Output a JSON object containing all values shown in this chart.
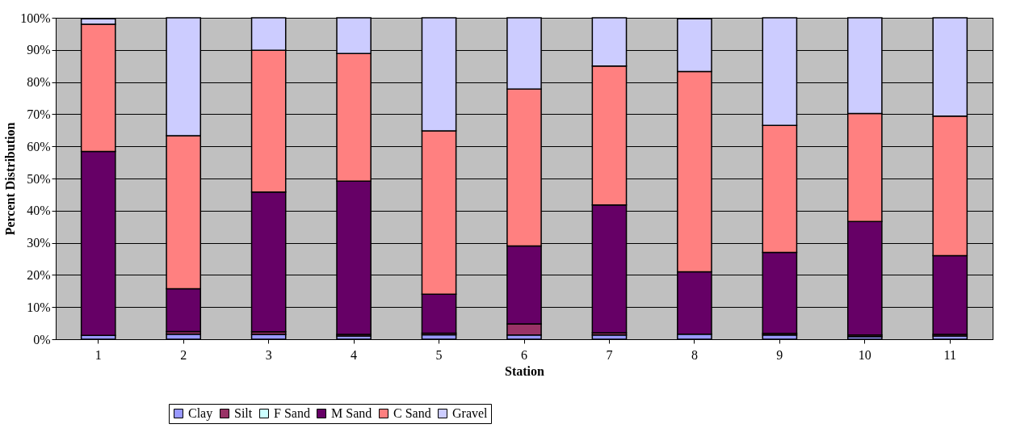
{
  "chart_data": {
    "type": "bar",
    "stacked": true,
    "xlabel": "Station",
    "ylabel": "Percent Distribution",
    "categories": [
      "1",
      "2",
      "3",
      "4",
      "5",
      "6",
      "7",
      "8",
      "9",
      "10",
      "11"
    ],
    "series": [
      {
        "name": "Clay",
        "color": "#9999ff",
        "values": [
          1.2,
          1.6,
          1.5,
          1.0,
          1.4,
          1.3,
          1.3,
          1.6,
          1.3,
          0.8,
          1.0
        ]
      },
      {
        "name": "Silt",
        "color": "#993366",
        "values": [
          null,
          0.8,
          0.8,
          0.5,
          0.5,
          3.5,
          0.7,
          null,
          0.5,
          0.5,
          0.5
        ]
      },
      {
        "name": "F Sand",
        "color": "#ccffff",
        "values": [
          0,
          0,
          0,
          0,
          0,
          0,
          0,
          0,
          0,
          0,
          0
        ]
      },
      {
        "name": "M Sand",
        "color": "#660066",
        "values": [
          57.2,
          13.3,
          43.5,
          47.7,
          12.1,
          24.2,
          39.8,
          19.4,
          25.2,
          35.3,
          24.5
        ]
      },
      {
        "name": "C Sand",
        "color": "#ff8080",
        "values": [
          39.6,
          47.6,
          44.1,
          39.7,
          50.8,
          48.8,
          43.2,
          62.3,
          39.5,
          33.6,
          43.4
        ]
      },
      {
        "name": "Gravel",
        "color": "#ccccff",
        "values": [
          1.7,
          36.7,
          10.1,
          11.1,
          35.2,
          22.2,
          15.0,
          16.4,
          33.5,
          29.8,
          30.6
        ]
      }
    ],
    "ylim": [
      0,
      100
    ],
    "yticks": [
      {
        "value": 0,
        "label": "0%"
      },
      {
        "value": 10,
        "label": "10%"
      },
      {
        "value": 20,
        "label": "20%"
      },
      {
        "value": 30,
        "label": "30%"
      },
      {
        "value": 40,
        "label": "40%"
      },
      {
        "value": 50,
        "label": "50%"
      },
      {
        "value": 60,
        "label": "60%"
      },
      {
        "value": 70,
        "label": "70%"
      },
      {
        "value": 80,
        "label": "80%"
      },
      {
        "value": 90,
        "label": "90%"
      },
      {
        "value": 100,
        "label": "100%"
      }
    ],
    "grid": "y",
    "legend": "bottom"
  }
}
